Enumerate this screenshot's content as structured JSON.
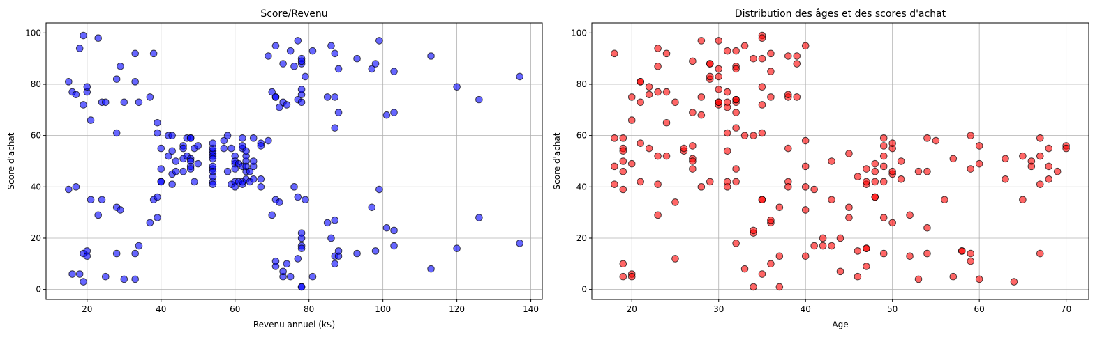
{
  "chart_data": [
    {
      "type": "scatter",
      "title": "Score/Revenu",
      "xlabel": "Revenu annuel (k$)",
      "ylabel": "Score d'achat",
      "color": "#0000ff",
      "grid": true,
      "xlim": [
        8.9,
        143.1
      ],
      "xticks": [
        20,
        40,
        60,
        80,
        100,
        120,
        140
      ],
      "ylim": [
        -3.9,
        103.9
      ],
      "yticks": [
        0,
        20,
        40,
        60,
        80,
        100
      ],
      "x": [
        15,
        15,
        16,
        16,
        17,
        17,
        18,
        18,
        19,
        19,
        19,
        19,
        20,
        20,
        20,
        20,
        21,
        21,
        23,
        23,
        24,
        24,
        25,
        25,
        28,
        28,
        28,
        28,
        29,
        29,
        30,
        30,
        33,
        33,
        33,
        33,
        34,
        34,
        37,
        37,
        38,
        38,
        39,
        39,
        39,
        39,
        40,
        40,
        40,
        40,
        42,
        42,
        43,
        43,
        43,
        43,
        44,
        44,
        46,
        46,
        46,
        46,
        47,
        47,
        48,
        48,
        48,
        48,
        48,
        48,
        49,
        49,
        50,
        50,
        54,
        54,
        54,
        54,
        54,
        54,
        54,
        54,
        54,
        54,
        54,
        54,
        57,
        57,
        58,
        58,
        59,
        59,
        60,
        60,
        60,
        60,
        60,
        60,
        61,
        61,
        62,
        62,
        62,
        62,
        62,
        62,
        63,
        63,
        63,
        63,
        63,
        63,
        64,
        64,
        65,
        65,
        65,
        65,
        67,
        67,
        67,
        67,
        69,
        69,
        70,
        70,
        71,
        71,
        71,
        71,
        71,
        71,
        72,
        72,
        73,
        73,
        73,
        73,
        74,
        74,
        75,
        75,
        76,
        76,
        77,
        77,
        77,
        77,
        78,
        78,
        78,
        78,
        78,
        78,
        78,
        78,
        78,
        78,
        78,
        78,
        79,
        79,
        81,
        81,
        85,
        85,
        86,
        86,
        87,
        87,
        87,
        87,
        87,
        87,
        88,
        88,
        88,
        88,
        93,
        93,
        97,
        97,
        98,
        98,
        99,
        99,
        101,
        101,
        103,
        103,
        103,
        103,
        113,
        113,
        120,
        120,
        126,
        126,
        137,
        137
      ],
      "values": [
        39,
        81,
        6,
        77,
        40,
        76,
        6,
        94,
        3,
        72,
        14,
        99,
        15,
        77,
        13,
        79,
        35,
        66,
        29,
        98,
        35,
        73,
        5,
        73,
        14,
        82,
        32,
        61,
        31,
        87,
        4,
        73,
        4,
        92,
        14,
        81,
        17,
        73,
        26,
        75,
        35,
        92,
        36,
        61,
        28,
        65,
        55,
        47,
        42,
        42,
        52,
        60,
        54,
        60,
        45,
        41,
        50,
        46,
        51,
        46,
        56,
        55,
        52,
        59,
        51,
        59,
        50,
        48,
        59,
        47,
        55,
        42,
        49,
        56,
        47,
        54,
        53,
        48,
        52,
        42,
        51,
        55,
        41,
        44,
        57,
        46,
        58,
        55,
        60,
        46,
        55,
        41,
        49,
        40,
        42,
        52,
        47,
        50,
        42,
        49,
        41,
        48,
        59,
        55,
        56,
        42,
        50,
        46,
        43,
        48,
        52,
        54,
        42,
        46,
        48,
        50,
        43,
        59,
        43,
        57,
        56,
        40,
        58,
        91,
        29,
        77,
        35,
        95,
        11,
        75,
        9,
        75,
        34,
        71,
        5,
        88,
        7,
        73,
        10,
        72,
        5,
        93,
        40,
        87,
        12,
        97,
        36,
        74,
        22,
        90,
        17,
        88,
        20,
        76,
        16,
        89,
        1,
        78,
        1,
        73,
        35,
        83,
        5,
        93,
        26,
        75,
        20,
        95,
        27,
        63,
        13,
        75,
        10,
        92,
        13,
        86,
        15,
        69,
        14,
        90,
        32,
        86,
        15,
        88,
        39,
        97,
        24,
        68,
        17,
        85,
        23,
        69,
        8,
        91,
        16,
        79,
        28,
        74,
        18,
        83
      ]
    },
    {
      "type": "scatter",
      "title": "Distribution des âges et des scores d'achat",
      "xlabel": "Age",
      "ylabel": "Score d'achat",
      "color": "#ff0000",
      "grid": true,
      "xlim": [
        15.4,
        72.6
      ],
      "xticks": [
        20,
        30,
        40,
        50,
        60,
        70
      ],
      "ylim": [
        -3.9,
        103.9
      ],
      "yticks": [
        0,
        20,
        40,
        60,
        80,
        100
      ],
      "x": [
        19,
        21,
        20,
        23,
        31,
        22,
        35,
        23,
        64,
        30,
        67,
        35,
        58,
        24,
        37,
        22,
        35,
        20,
        52,
        35,
        35,
        25,
        46,
        31,
        54,
        29,
        45,
        35,
        40,
        23,
        60,
        21,
        53,
        18,
        49,
        21,
        42,
        30,
        36,
        20,
        65,
        24,
        48,
        31,
        49,
        24,
        50,
        27,
        29,
        31,
        49,
        33,
        31,
        59,
        50,
        47,
        51,
        69,
        27,
        53,
        70,
        19,
        67,
        54,
        63,
        18,
        43,
        68,
        19,
        32,
        70,
        47,
        60,
        60,
        59,
        26,
        45,
        40,
        23,
        49,
        57,
        38,
        67,
        46,
        21,
        48,
        55,
        22,
        34,
        50,
        68,
        18,
        48,
        40,
        32,
        24,
        47,
        27,
        48,
        20,
        23,
        49,
        67,
        26,
        49,
        21,
        66,
        54,
        68,
        66,
        65,
        19,
        38,
        19,
        18,
        19,
        63,
        49,
        51,
        50,
        27,
        38,
        40,
        39,
        23,
        31,
        43,
        40,
        59,
        38,
        47,
        39,
        25,
        31,
        20,
        29,
        44,
        32,
        19,
        35,
        57,
        32,
        28,
        32,
        25,
        28,
        48,
        32,
        34,
        34,
        43,
        39,
        44,
        38,
        47,
        27,
        37,
        30,
        34,
        30,
        56,
        29,
        19,
        31,
        50,
        36,
        42,
        33,
        36,
        32,
        40,
        28,
        36,
        36,
        52,
        30,
        58,
        27,
        59,
        35,
        37,
        32,
        46,
        29,
        41,
        30,
        54,
        28,
        41,
        36,
        34,
        32,
        33,
        38,
        47,
        35,
        45,
        32,
        32,
        30
      ],
      "values": [
        39,
        81,
        6,
        77,
        40,
        76,
        6,
        94,
        3,
        72,
        14,
        99,
        15,
        77,
        13,
        79,
        35,
        66,
        29,
        98,
        35,
        73,
        5,
        73,
        14,
        82,
        32,
        61,
        31,
        87,
        4,
        73,
        4,
        92,
        14,
        81,
        17,
        73,
        26,
        75,
        35,
        92,
        36,
        61,
        28,
        65,
        55,
        47,
        42,
        42,
        52,
        60,
        54,
        60,
        45,
        41,
        50,
        46,
        51,
        46,
        56,
        55,
        52,
        59,
        51,
        59,
        50,
        48,
        59,
        47,
        55,
        42,
        49,
        56,
        47,
        54,
        53,
        48,
        52,
        42,
        51,
        55,
        41,
        44,
        57,
        46,
        58,
        55,
        60,
        46,
        55,
        41,
        49,
        40,
        42,
        52,
        47,
        50,
        42,
        49,
        41,
        48,
        59,
        55,
        56,
        42,
        50,
        46,
        43,
        48,
        52,
        54,
        42,
        46,
        48,
        50,
        43,
        59,
        43,
        57,
        56,
        40,
        58,
        91,
        29,
        77,
        35,
        95,
        11,
        75,
        9,
        75,
        34,
        71,
        5,
        88,
        7,
        73,
        10,
        72,
        5,
        93,
        40,
        87,
        12,
        97,
        36,
        74,
        22,
        90,
        17,
        88,
        20,
        76,
        16,
        89,
        1,
        78,
        1,
        73,
        35,
        83,
        5,
        93,
        26,
        75,
        20,
        95,
        27,
        63,
        13,
        75,
        10,
        92,
        13,
        86,
        15,
        69,
        14,
        90,
        32,
        86,
        15,
        88,
        39,
        97,
        24,
        68,
        17,
        85,
        23,
        69,
        8,
        91,
        16,
        79,
        28,
        74,
        18,
        83
      ]
    }
  ]
}
